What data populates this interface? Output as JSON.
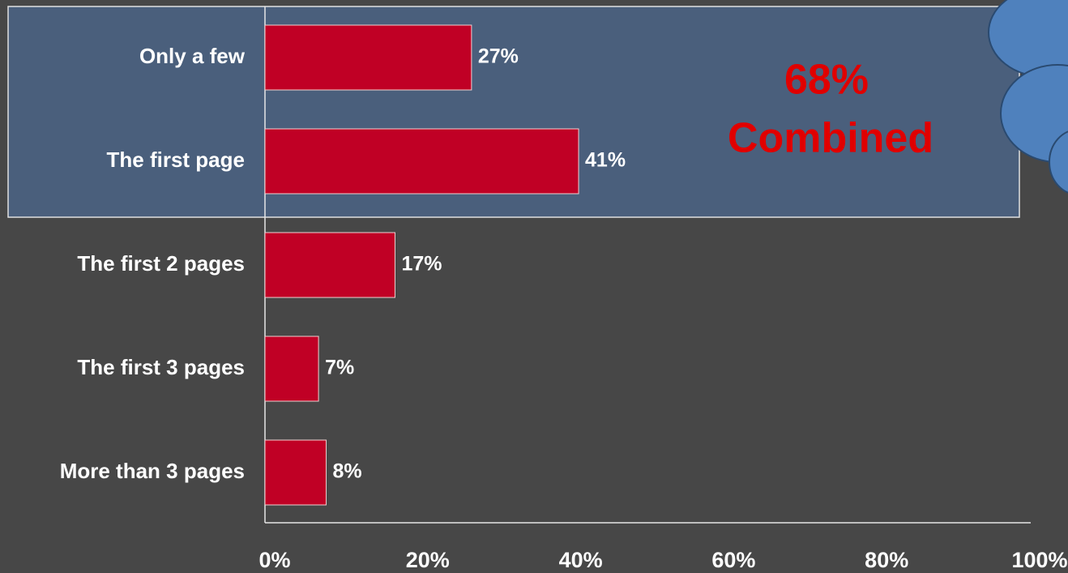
{
  "chart_data": {
    "type": "hbar",
    "categories": [
      "Only a few",
      "The first page",
      "The first 2 pages",
      "The first 3 pages",
      "More than 3 pages"
    ],
    "values": [
      27,
      41,
      17,
      7,
      8
    ],
    "value_labels": [
      "27%",
      "41%",
      "17%",
      "7%",
      "8%"
    ],
    "color": "#c00025",
    "xlim": [
      0,
      100
    ],
    "xticks": [
      {
        "value": 0,
        "label": "0%"
      },
      {
        "value": 20,
        "label": "20%"
      },
      {
        "value": 40,
        "label": "40%"
      },
      {
        "value": 60,
        "label": "60%"
      },
      {
        "value": 80,
        "label": "80%"
      },
      {
        "value": 100,
        "label": "100%"
      }
    ],
    "annotation": [
      "68%",
      "Combined"
    ]
  }
}
